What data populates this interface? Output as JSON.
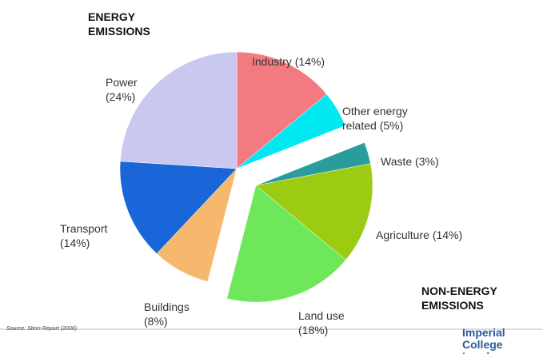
{
  "chart_data": {
    "type": "pie",
    "title": "ENERGY EMISSIONS",
    "subtitle": "NON-ENERGY EMISSIONS",
    "source": "Source: Stern Report (2006)",
    "logo": "Imperial College London",
    "categories": [
      "Industry",
      "Other energy related",
      "Waste",
      "Agriculture",
      "Land use",
      "Buildings",
      "Transport",
      "Power"
    ],
    "values": [
      14,
      5,
      3,
      14,
      18,
      8,
      14,
      24
    ],
    "value_labels": [
      "(14%)",
      "(5%)",
      "(3%)",
      "(14%)",
      "(18%)",
      "(8%)",
      "(14%)",
      "(24%)"
    ],
    "colors": [
      "#f47a82",
      "#00e8f0",
      "#2a9c9c",
      "#9ccc12",
      "#6ee85a",
      "#f6b86c",
      "#1a66d8",
      "#c8c8f0"
    ],
    "explode": [
      false,
      false,
      true,
      true,
      true,
      false,
      false,
      false
    ]
  }
}
